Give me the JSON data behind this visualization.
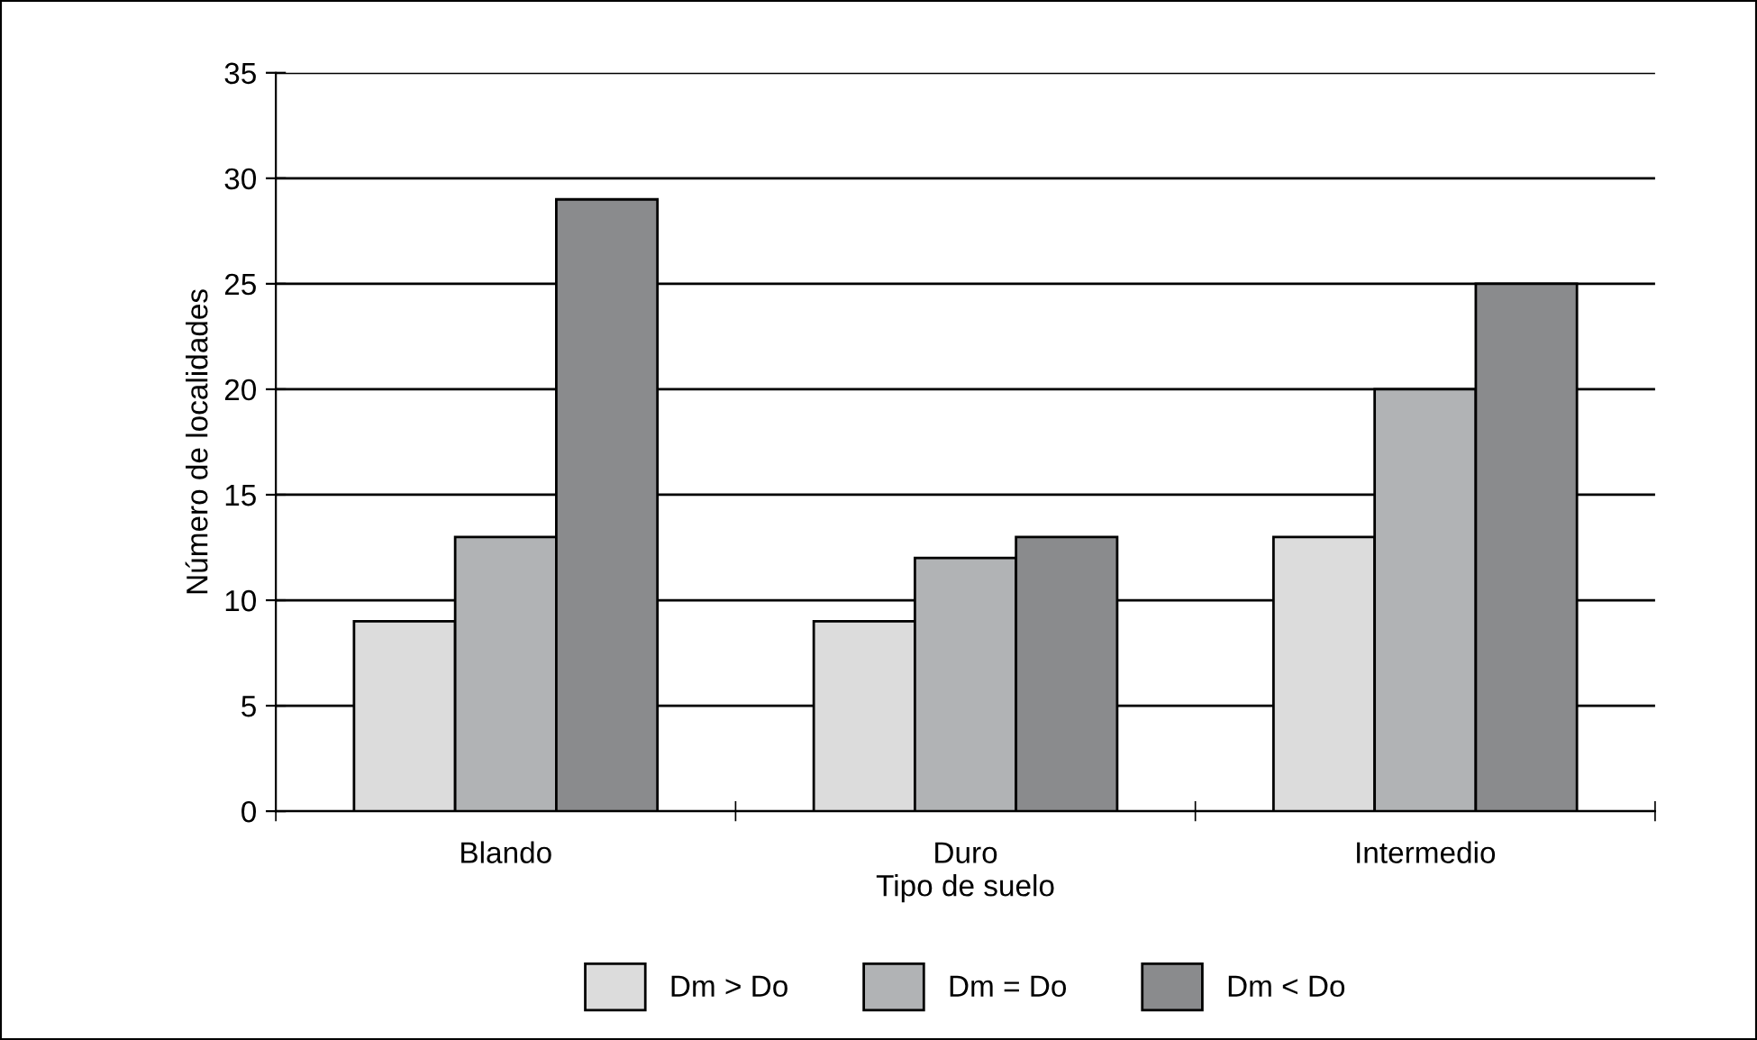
{
  "chart_data": {
    "type": "bar",
    "xlabel": "Tipo de suelo",
    "ylabel": "Número de localidades",
    "categories": [
      "Blando",
      "Duro",
      "Intermedio"
    ],
    "series": [
      {
        "name": "Dm > Do",
        "color": "#dcdcdc",
        "values": [
          9,
          9,
          13
        ]
      },
      {
        "name": "Dm = Do",
        "color": "#b1b3b5",
        "values": [
          13,
          12,
          20
        ]
      },
      {
        "name": "Dm < Do",
        "color": "#8a8b8d",
        "values": [
          29,
          13,
          25
        ]
      }
    ],
    "ylim": [
      0,
      35
    ],
    "yticks": [
      0,
      5,
      10,
      15,
      20,
      25,
      30,
      35
    ],
    "grid": "y",
    "legend": "bottom"
  }
}
